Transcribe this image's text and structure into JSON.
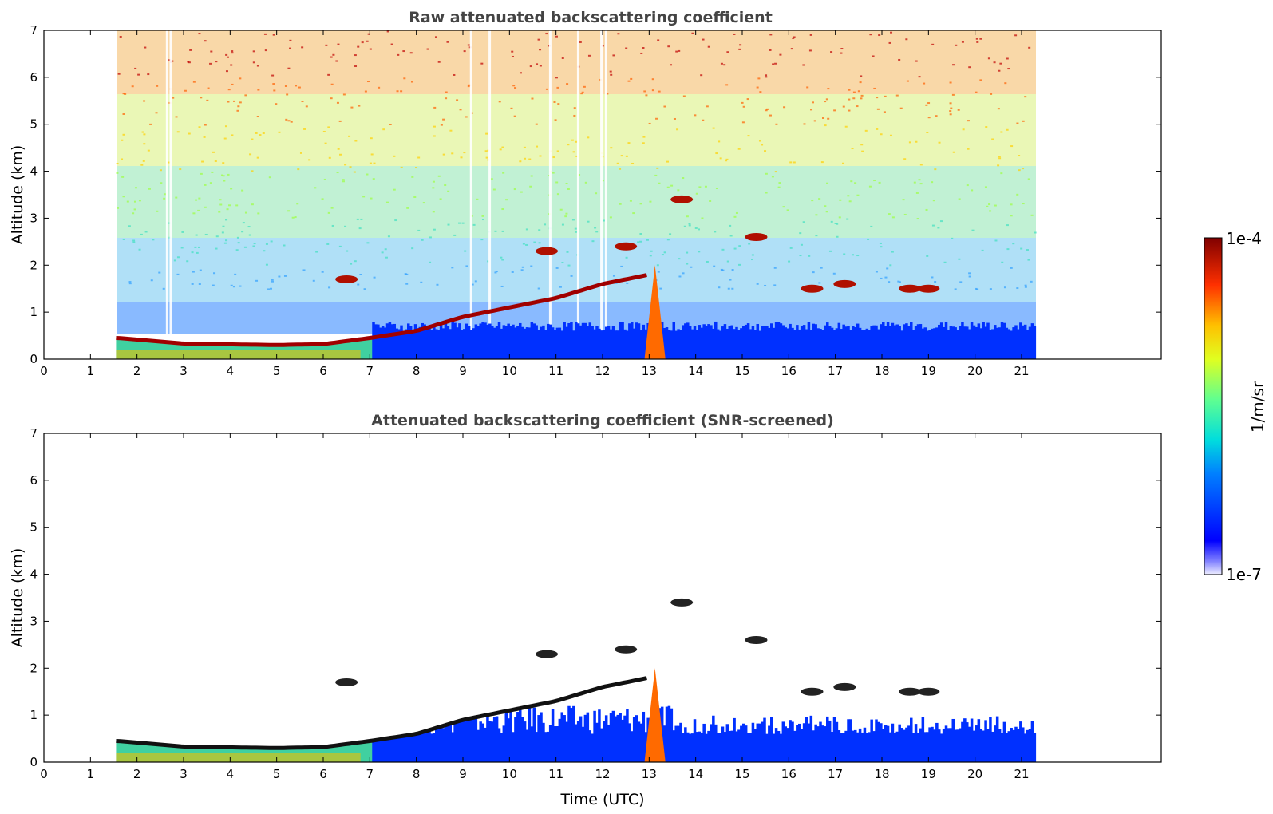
{
  "chart_data": [
    {
      "type": "heatmap",
      "title": "Raw attenuated backscattering coefficient",
      "xlabel": "",
      "ylabel": "Altitude (km)",
      "xlim": [
        0,
        24
      ],
      "ylim": [
        0,
        7
      ],
      "x_ticks": [
        0,
        1,
        2,
        3,
        4,
        5,
        6,
        7,
        8,
        9,
        10,
        11,
        12,
        13,
        14,
        15,
        16,
        17,
        18,
        19,
        20,
        21
      ],
      "y_ticks": [
        0,
        1,
        2,
        3,
        4,
        5,
        6,
        7
      ],
      "data_time_range": [
        1.55,
        21.3
      ],
      "screened": false,
      "features": {
        "boundary_layer_top_km": [
          [
            1.6,
            0.45
          ],
          [
            3,
            0.33
          ],
          [
            5,
            0.3
          ],
          [
            6,
            0.32
          ],
          [
            7,
            0.45
          ],
          [
            8,
            0.6
          ],
          [
            9,
            0.9
          ],
          [
            10,
            1.1
          ],
          [
            11,
            1.3
          ],
          [
            12,
            1.6
          ],
          [
            13,
            1.8
          ]
        ],
        "plume": {
          "time": [
            12.9,
            13.35
          ],
          "top_km": 2.0
        },
        "cloud_patches": [
          [
            6.5,
            1.7
          ],
          [
            10.8,
            2.3
          ],
          [
            12.5,
            2.4
          ],
          [
            13.7,
            3.4
          ],
          [
            15.3,
            2.6
          ],
          [
            16.5,
            1.5
          ],
          [
            17.2,
            1.6
          ],
          [
            18.6,
            1.5
          ],
          [
            19.0,
            1.5
          ]
        ]
      }
    },
    {
      "type": "heatmap",
      "title": "Attenuated backscattering coefficient (SNR-screened)",
      "xlabel": "Time (UTC)",
      "ylabel": "Altitude (km)",
      "xlim": [
        0,
        24
      ],
      "ylim": [
        0,
        7
      ],
      "x_ticks": [
        0,
        1,
        2,
        3,
        4,
        5,
        6,
        7,
        8,
        9,
        10,
        11,
        12,
        13,
        14,
        15,
        16,
        17,
        18,
        19,
        20,
        21
      ],
      "y_ticks": [
        0,
        1,
        2,
        3,
        4,
        5,
        6,
        7
      ],
      "data_time_range": [
        1.55,
        21.3
      ],
      "screened": true
    }
  ],
  "colorbar": {
    "label": "1/m/sr",
    "max_label": "1e-4",
    "min_label": "1e-7",
    "scale": "log",
    "colormap": "jet"
  }
}
